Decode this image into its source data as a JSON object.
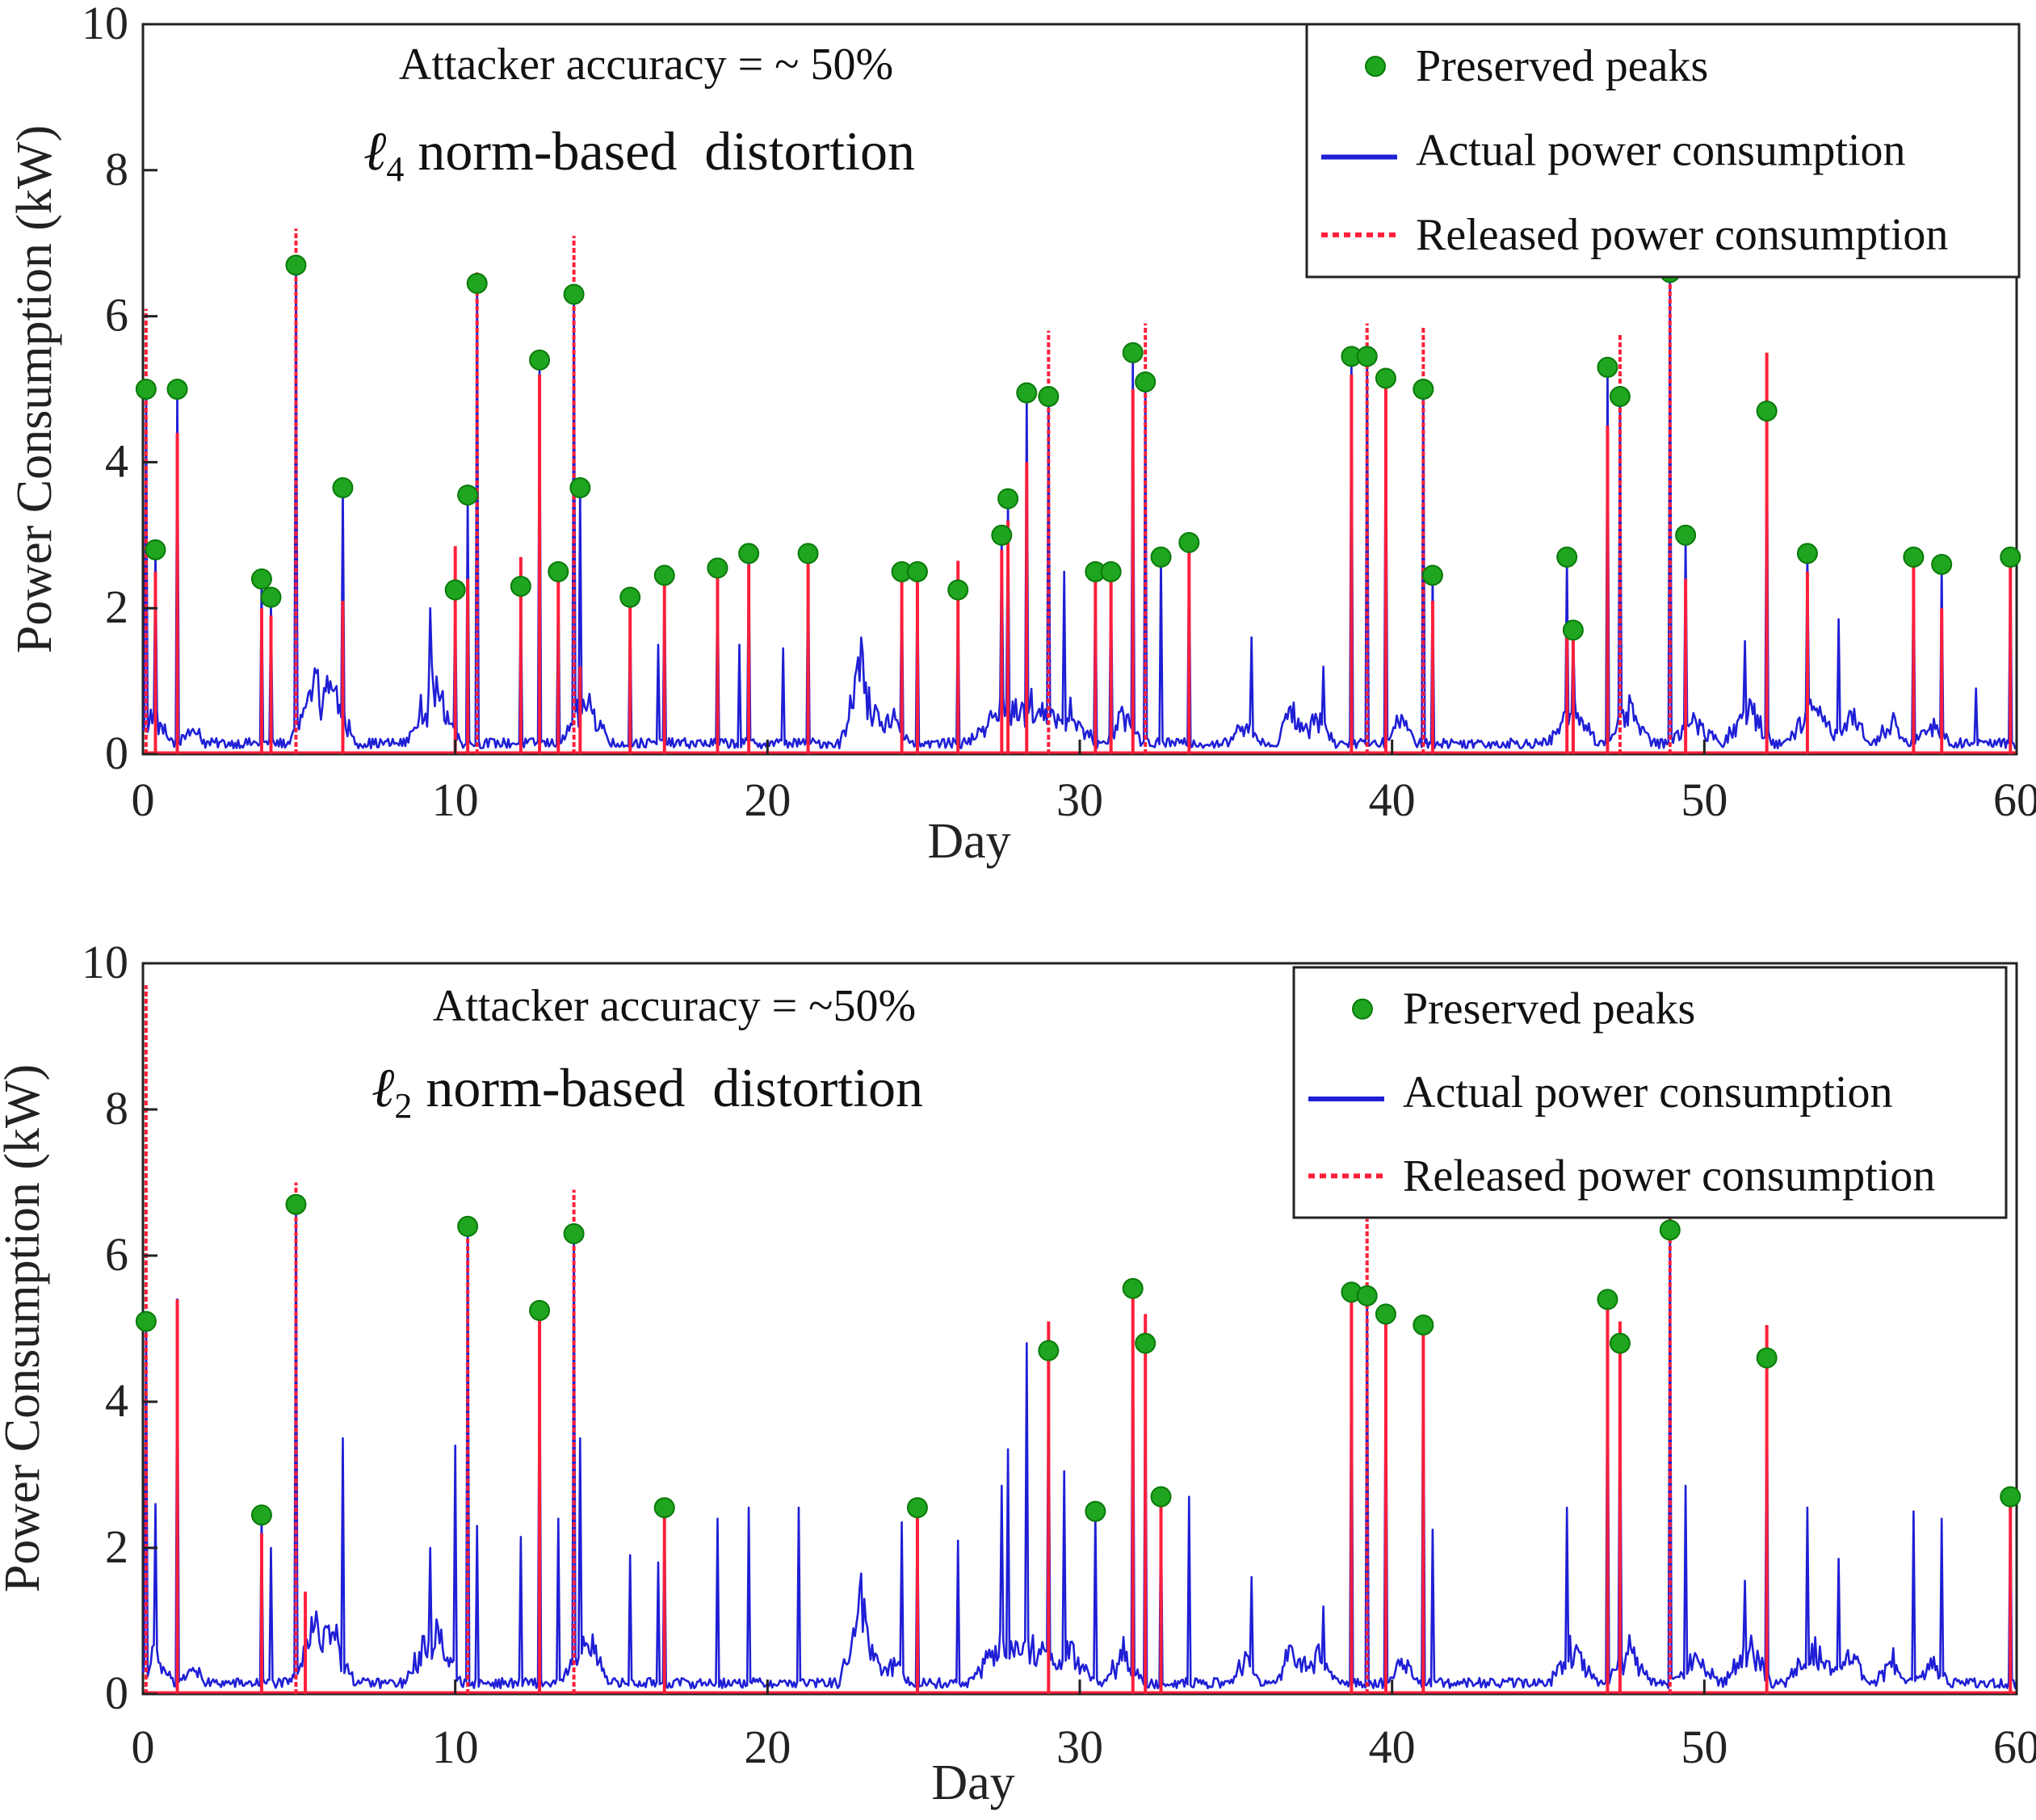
{
  "colors": {
    "actual": "#1f1fd6",
    "released": "#ff1f3a",
    "peak_fill": "#1fa51f",
    "peak_stroke": "#0a7a0a",
    "axis": "#222222"
  },
  "chart_data": [
    {
      "type": "line",
      "annotation": "Attacker accuracy = ~ 50%",
      "subtitle_prefix": "ℓ",
      "subtitle_sub": "4",
      "subtitle_rest": " norm-based  distortion",
      "xlabel": "Day",
      "ylabel": "Power Consumption (kW)",
      "xlim": [
        0,
        60
      ],
      "ylim": [
        0,
        10
      ],
      "xticks": [
        0,
        10,
        20,
        30,
        40,
        50,
        60
      ],
      "yticks": [
        0,
        2,
        4,
        6,
        8,
        10
      ],
      "grid": false,
      "legend_position": "top-right",
      "legend": [
        {
          "label": "Preserved peaks",
          "style": "marker"
        },
        {
          "label": "Actual power consumption",
          "style": "solid"
        },
        {
          "label": "Released power consumption",
          "style": "dotted"
        }
      ],
      "actual_spikes": [
        [
          0.1,
          5.0
        ],
        [
          0.4,
          2.8
        ],
        [
          1.1,
          5.0
        ],
        [
          3.8,
          2.4
        ],
        [
          4.1,
          2.1
        ],
        [
          4.9,
          6.7
        ],
        [
          6.4,
          3.65
        ],
        [
          9.2,
          2.0
        ],
        [
          10.0,
          2.25
        ],
        [
          10.4,
          3.55
        ],
        [
          10.7,
          6.45
        ],
        [
          12.1,
          2.3
        ],
        [
          12.7,
          5.4
        ],
        [
          13.3,
          2.5
        ],
        [
          13.8,
          6.3
        ],
        [
          14.0,
          3.65
        ],
        [
          15.6,
          2.15
        ],
        [
          16.5,
          1.5
        ],
        [
          16.7,
          2.45
        ],
        [
          18.4,
          2.55
        ],
        [
          19.1,
          1.5
        ],
        [
          19.4,
          2.75
        ],
        [
          20.5,
          1.45
        ],
        [
          21.3,
          2.75
        ],
        [
          23.0,
          1.6
        ],
        [
          24.3,
          2.5
        ],
        [
          24.8,
          2.5
        ],
        [
          26.1,
          2.25
        ],
        [
          27.5,
          3.0
        ],
        [
          27.7,
          3.5
        ],
        [
          28.3,
          4.95
        ],
        [
          29.0,
          4.9
        ],
        [
          29.5,
          2.5
        ],
        [
          30.5,
          2.5
        ],
        [
          31.0,
          2.5
        ],
        [
          31.7,
          5.5
        ],
        [
          32.1,
          5.1
        ],
        [
          32.6,
          2.7
        ],
        [
          33.5,
          2.9
        ],
        [
          35.5,
          1.6
        ],
        [
          37.8,
          1.2
        ],
        [
          38.7,
          5.45
        ],
        [
          39.2,
          5.45
        ],
        [
          39.8,
          5.15
        ],
        [
          41.0,
          5.0
        ],
        [
          41.3,
          2.45
        ],
        [
          45.6,
          2.7
        ],
        [
          45.8,
          1.7
        ],
        [
          46.9,
          5.3
        ],
        [
          47.3,
          4.9
        ],
        [
          48.9,
          6.6
        ],
        [
          49.4,
          3.0
        ],
        [
          51.3,
          1.55
        ],
        [
          52.0,
          4.7
        ],
        [
          53.3,
          2.75
        ],
        [
          54.3,
          1.85
        ],
        [
          56.7,
          2.7
        ],
        [
          57.6,
          2.6
        ],
        [
          58.7,
          0.9
        ],
        [
          59.8,
          2.7
        ]
      ],
      "released_spikes": [
        [
          0.1,
          6.1
        ],
        [
          0.4,
          2.5
        ],
        [
          1.1,
          4.4
        ],
        [
          3.8,
          2.0
        ],
        [
          4.1,
          1.9
        ],
        [
          4.9,
          7.2
        ],
        [
          6.4,
          2.1
        ],
        [
          10.0,
          2.85
        ],
        [
          10.4,
          2.4
        ],
        [
          10.7,
          6.6
        ],
        [
          12.1,
          2.7
        ],
        [
          12.7,
          5.2
        ],
        [
          13.3,
          2.45
        ],
        [
          13.8,
          7.1
        ],
        [
          14.0,
          1.2
        ],
        [
          15.6,
          2.05
        ],
        [
          16.7,
          2.4
        ],
        [
          18.4,
          2.5
        ],
        [
          19.4,
          2.6
        ],
        [
          21.3,
          2.7
        ],
        [
          24.3,
          2.45
        ],
        [
          24.8,
          2.4
        ],
        [
          26.1,
          2.65
        ],
        [
          27.5,
          2.8
        ],
        [
          27.7,
          3.2
        ],
        [
          28.3,
          4.0
        ],
        [
          29.0,
          5.8
        ],
        [
          30.5,
          2.4
        ],
        [
          31.0,
          2.45
        ],
        [
          31.7,
          5.0
        ],
        [
          32.1,
          5.9
        ],
        [
          33.5,
          2.8
        ],
        [
          38.7,
          5.2
        ],
        [
          39.2,
          5.9
        ],
        [
          39.8,
          5.1
        ],
        [
          41.0,
          5.85
        ],
        [
          41.3,
          2.1
        ],
        [
          45.6,
          1.75
        ],
        [
          45.8,
          1.6
        ],
        [
          46.9,
          4.5
        ],
        [
          47.3,
          5.75
        ],
        [
          48.9,
          6.6
        ],
        [
          49.4,
          2.4
        ],
        [
          52.0,
          5.5
        ],
        [
          53.3,
          2.5
        ],
        [
          56.7,
          2.6
        ],
        [
          57.6,
          2.0
        ],
        [
          59.8,
          2.6
        ]
      ],
      "preserved_peaks": [
        [
          0.1,
          5.0
        ],
        [
          0.4,
          2.8
        ],
        [
          1.1,
          5.0
        ],
        [
          3.8,
          2.4
        ],
        [
          4.1,
          2.15
        ],
        [
          4.9,
          6.7
        ],
        [
          6.4,
          3.65
        ],
        [
          10.0,
          2.25
        ],
        [
          10.4,
          3.55
        ],
        [
          10.7,
          6.45
        ],
        [
          12.1,
          2.3
        ],
        [
          12.7,
          5.4
        ],
        [
          13.3,
          2.5
        ],
        [
          13.8,
          6.3
        ],
        [
          14.0,
          3.65
        ],
        [
          15.6,
          2.15
        ],
        [
          16.7,
          2.45
        ],
        [
          18.4,
          2.55
        ],
        [
          19.4,
          2.75
        ],
        [
          21.3,
          2.75
        ],
        [
          24.3,
          2.5
        ],
        [
          24.8,
          2.5
        ],
        [
          26.1,
          2.25
        ],
        [
          27.5,
          3.0
        ],
        [
          27.7,
          3.5
        ],
        [
          28.3,
          4.95
        ],
        [
          29.0,
          4.9
        ],
        [
          30.5,
          2.5
        ],
        [
          31.0,
          2.5
        ],
        [
          31.7,
          5.5
        ],
        [
          32.1,
          5.1
        ],
        [
          32.6,
          2.7
        ],
        [
          33.5,
          2.9
        ],
        [
          38.7,
          5.45
        ],
        [
          39.2,
          5.45
        ],
        [
          39.8,
          5.15
        ],
        [
          41.0,
          5.0
        ],
        [
          41.3,
          2.45
        ],
        [
          45.6,
          2.7
        ],
        [
          45.8,
          1.7
        ],
        [
          46.9,
          5.3
        ],
        [
          47.3,
          4.9
        ],
        [
          48.9,
          6.6
        ],
        [
          49.4,
          3.0
        ],
        [
          52.0,
          4.7
        ],
        [
          53.3,
          2.75
        ],
        [
          56.7,
          2.7
        ],
        [
          57.6,
          2.6
        ],
        [
          59.8,
          2.7
        ]
      ]
    },
    {
      "type": "line",
      "annotation": "Attacker accuracy = ~50%",
      "subtitle_prefix": "ℓ",
      "subtitle_sub": "2",
      "subtitle_rest": " norm-based  distortion",
      "xlabel": "Day",
      "ylabel": "Power Consumption (kW)",
      "xlim": [
        0,
        60
      ],
      "ylim": [
        0,
        10
      ],
      "xticks": [
        0,
        10,
        20,
        30,
        40,
        50,
        60
      ],
      "yticks": [
        0,
        2,
        4,
        6,
        8,
        10
      ],
      "grid": false,
      "legend_position": "top-right",
      "legend": [
        {
          "label": "Preserved peaks",
          "style": "marker"
        },
        {
          "label": "Actual power consumption",
          "style": "solid"
        },
        {
          "label": "Released power consumption",
          "style": "dotted"
        }
      ],
      "actual_spikes": [
        [
          0.1,
          5.1
        ],
        [
          0.4,
          2.6
        ],
        [
          1.1,
          5.4
        ],
        [
          3.8,
          2.45
        ],
        [
          4.1,
          2.0
        ],
        [
          4.9,
          6.7
        ],
        [
          6.4,
          3.5
        ],
        [
          9.2,
          2.0
        ],
        [
          10.0,
          3.4
        ],
        [
          10.4,
          6.4
        ],
        [
          10.7,
          2.3
        ],
        [
          12.1,
          2.15
        ],
        [
          12.7,
          5.25
        ],
        [
          13.3,
          2.4
        ],
        [
          13.8,
          6.3
        ],
        [
          14.0,
          3.5
        ],
        [
          15.6,
          1.9
        ],
        [
          16.5,
          1.8
        ],
        [
          16.7,
          2.55
        ],
        [
          18.4,
          2.4
        ],
        [
          19.4,
          2.55
        ],
        [
          21.0,
          2.55
        ],
        [
          23.0,
          1.65
        ],
        [
          24.3,
          2.35
        ],
        [
          24.8,
          2.55
        ],
        [
          26.1,
          2.1
        ],
        [
          27.5,
          2.85
        ],
        [
          27.7,
          3.35
        ],
        [
          28.3,
          4.8
        ],
        [
          29.0,
          4.7
        ],
        [
          29.5,
          3.05
        ],
        [
          30.5,
          2.5
        ],
        [
          31.7,
          5.55
        ],
        [
          32.1,
          4.8
        ],
        [
          32.6,
          2.7
        ],
        [
          33.5,
          2.7
        ],
        [
          35.5,
          1.6
        ],
        [
          37.8,
          1.2
        ],
        [
          38.7,
          5.5
        ],
        [
          39.2,
          5.45
        ],
        [
          39.8,
          5.2
        ],
        [
          41.0,
          5.05
        ],
        [
          41.3,
          2.25
        ],
        [
          45.6,
          2.55
        ],
        [
          46.9,
          5.4
        ],
        [
          47.3,
          4.8
        ],
        [
          48.9,
          6.35
        ],
        [
          49.4,
          2.85
        ],
        [
          51.3,
          1.55
        ],
        [
          52.0,
          4.6
        ],
        [
          53.3,
          2.55
        ],
        [
          54.3,
          1.85
        ],
        [
          56.7,
          2.5
        ],
        [
          57.6,
          2.4
        ],
        [
          59.8,
          2.7
        ]
      ],
      "released_spikes": [
        [
          0.1,
          9.7
        ],
        [
          1.1,
          5.4
        ],
        [
          3.8,
          2.2
        ],
        [
          4.9,
          7.0
        ],
        [
          5.2,
          1.4
        ],
        [
          10.4,
          6.5
        ],
        [
          12.7,
          5.3
        ],
        [
          13.8,
          6.9
        ],
        [
          16.7,
          2.5
        ],
        [
          24.8,
          2.55
        ],
        [
          29.0,
          5.1
        ],
        [
          31.7,
          5.5
        ],
        [
          32.1,
          5.2
        ],
        [
          32.6,
          2.6
        ],
        [
          38.7,
          5.5
        ],
        [
          39.2,
          6.5
        ],
        [
          39.8,
          5.2
        ],
        [
          41.0,
          5.05
        ],
        [
          46.9,
          5.5
        ],
        [
          47.3,
          5.1
        ],
        [
          48.9,
          6.8
        ],
        [
          52.0,
          5.05
        ],
        [
          59.8,
          2.6
        ]
      ],
      "preserved_peaks": [
        [
          0.1,
          5.1
        ],
        [
          3.8,
          2.45
        ],
        [
          4.9,
          6.7
        ],
        [
          10.4,
          6.4
        ],
        [
          12.7,
          5.25
        ],
        [
          13.8,
          6.3
        ],
        [
          16.7,
          2.55
        ],
        [
          24.8,
          2.55
        ],
        [
          29.0,
          4.7
        ],
        [
          30.5,
          2.5
        ],
        [
          31.7,
          5.55
        ],
        [
          32.1,
          4.8
        ],
        [
          32.6,
          2.7
        ],
        [
          38.7,
          5.5
        ],
        [
          39.2,
          5.45
        ],
        [
          39.8,
          5.2
        ],
        [
          41.0,
          5.05
        ],
        [
          46.9,
          5.4
        ],
        [
          47.3,
          4.8
        ],
        [
          48.9,
          6.35
        ],
        [
          52.0,
          4.6
        ],
        [
          59.8,
          2.7
        ]
      ]
    }
  ]
}
